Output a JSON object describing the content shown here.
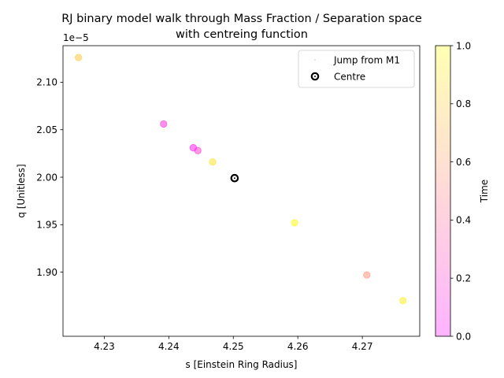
{
  "chart_data": {
    "type": "scatter",
    "title_lines": [
      "RJ binary model walk through Mass Fraction / Separation space",
      "with centreing function"
    ],
    "xlabel": "s [Einstein Ring Radius]",
    "ylabel": "q [Unitless]",
    "y_offset_text": "1e−5",
    "xlim": [
      4.2236,
      4.2789
    ],
    "ylim": [
      1.8325,
      2.1385
    ],
    "x_ticks": [
      4.23,
      4.24,
      4.25,
      4.26,
      4.27
    ],
    "x_tick_labels": [
      "4.23",
      "4.24",
      "4.25",
      "4.26",
      "4.27"
    ],
    "y_ticks": [
      1.9,
      1.95,
      2.0,
      2.05,
      2.1
    ],
    "y_tick_labels": [
      "1.90",
      "1.95",
      "2.00",
      "2.05",
      "2.10"
    ],
    "series": [
      {
        "name": "Jump from M1",
        "points": [
          {
            "x": 4.226,
            "y": 2.126,
            "t": 0.78
          },
          {
            "x": 4.2392,
            "y": 2.056,
            "t": 0.14
          },
          {
            "x": 4.2438,
            "y": 2.031,
            "t": 0.06
          },
          {
            "x": 4.2445,
            "y": 2.028,
            "t": 0.2
          },
          {
            "x": 4.2468,
            "y": 2.016,
            "t": 0.88
          },
          {
            "x": 4.2595,
            "y": 1.952,
            "t": 0.98
          },
          {
            "x": 4.2707,
            "y": 1.897,
            "t": 0.55
          },
          {
            "x": 4.2763,
            "y": 1.87,
            "t": 0.93
          }
        ]
      },
      {
        "name": "Centre",
        "points": [
          {
            "x": 4.2502,
            "y": 1.999
          }
        ]
      }
    ],
    "colorbar": {
      "label": "Time",
      "range": [
        0.0,
        1.0
      ],
      "ticks": [
        0.0,
        0.2,
        0.4,
        0.6,
        0.8,
        1.0
      ],
      "tick_labels": [
        "0.0",
        "0.2",
        "0.4",
        "0.6",
        "0.8",
        "1.0"
      ],
      "colormap_stops": [
        "#ff00ff",
        "#ff8080",
        "#ffff00"
      ],
      "alpha": 0.3
    },
    "legend": {
      "location": "top-right",
      "entries": [
        "Jump from M1",
        "Centre"
      ]
    },
    "grid": false
  }
}
